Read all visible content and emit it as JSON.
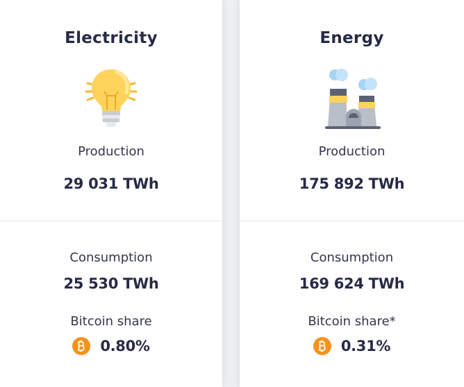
{
  "cards": [
    {
      "title": "Electricity",
      "production_label": "Production",
      "production": "29 031 TWh",
      "consumption_label": "Consumption",
      "consumption": "25 530 TWh",
      "share_label": "Bitcoin share",
      "share": "0.80%"
    },
    {
      "title": "Energy",
      "production_label": "Production",
      "production": "175 892 TWh",
      "consumption_label": "Consumption",
      "consumption": "169 624 TWh",
      "share_label": "Bitcoin share*",
      "share": "0.31%"
    }
  ]
}
